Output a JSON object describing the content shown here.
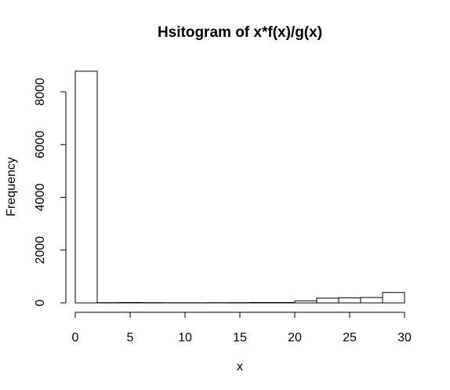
{
  "chart_data": {
    "type": "bar",
    "title": "Hsitogram of x*f(x)/g(x)",
    "xlabel": "x",
    "ylabel": "Frequency",
    "xlim": [
      0,
      30
    ],
    "ylim": [
      0,
      8800
    ],
    "x_ticks": [
      0,
      5,
      10,
      15,
      20,
      25,
      30
    ],
    "y_ticks": [
      0,
      2000,
      4000,
      6000,
      8000
    ],
    "bins": [
      {
        "start": 0,
        "end": 2,
        "count": 8780
      },
      {
        "start": 2,
        "end": 4,
        "count": 10
      },
      {
        "start": 4,
        "end": 6,
        "count": 15
      },
      {
        "start": 6,
        "end": 8,
        "count": 10
      },
      {
        "start": 8,
        "end": 10,
        "count": 5
      },
      {
        "start": 10,
        "end": 12,
        "count": 5
      },
      {
        "start": 12,
        "end": 14,
        "count": 8
      },
      {
        "start": 14,
        "end": 16,
        "count": 10
      },
      {
        "start": 16,
        "end": 18,
        "count": 15
      },
      {
        "start": 18,
        "end": 20,
        "count": 15
      },
      {
        "start": 20,
        "end": 22,
        "count": 80
      },
      {
        "start": 22,
        "end": 24,
        "count": 180
      },
      {
        "start": 24,
        "end": 26,
        "count": 190
      },
      {
        "start": 26,
        "end": 28,
        "count": 205
      },
      {
        "start": 28,
        "end": 30,
        "count": 395
      }
    ],
    "grid": false,
    "legend": "none",
    "colors": {
      "bar_fill": "#ffffff",
      "bar_stroke": "#000000"
    }
  }
}
